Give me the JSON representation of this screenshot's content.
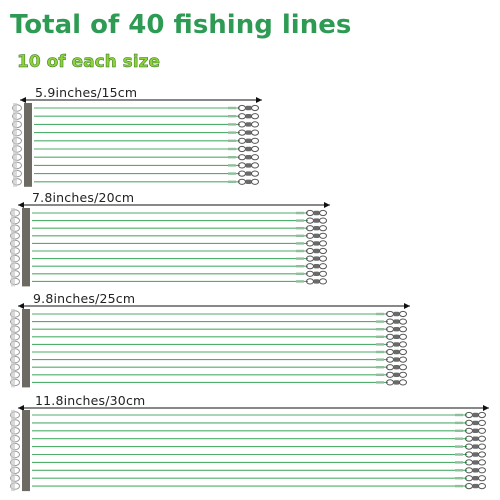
{
  "header": {
    "title": "Total of 40 fishing lines",
    "subtitle": "10 of each size"
  },
  "bundles": [
    {
      "length_label": "5.9inches/15cm",
      "line_count": 10
    },
    {
      "length_label": "7.8inches/20cm",
      "line_count": 10
    },
    {
      "length_label": "9.8inches/25cm",
      "line_count": 10
    },
    {
      "length_label": "11.8inches/30cm",
      "line_count": 10
    }
  ],
  "colors": {
    "title": "#2e9b54",
    "subtitle": "#8ed13a",
    "line": "#4fae6a",
    "sleeve": "#6d6a64",
    "metal": "#9a9a9a"
  }
}
